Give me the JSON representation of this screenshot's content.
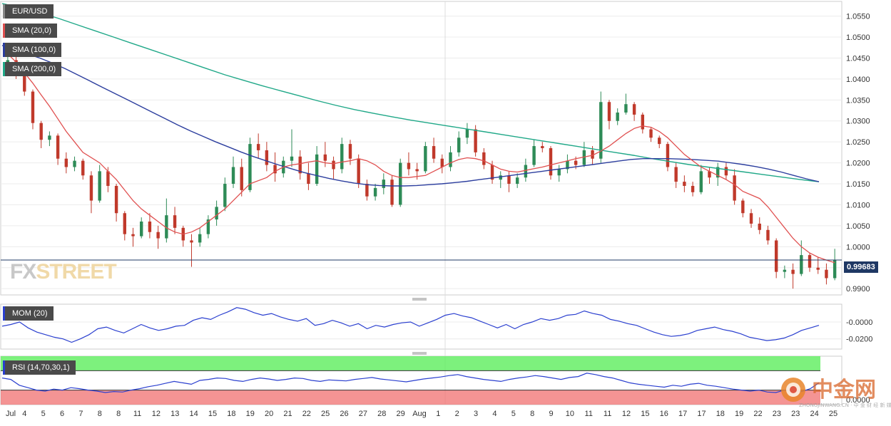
{
  "instrument": "EUR/USD",
  "colors": {
    "up": "#2e8b57",
    "down": "#c0392b",
    "sma20": "#e05050",
    "sma100": "#2c3e9e",
    "sma200": "#20a888",
    "mom": "#2a3fcf",
    "rsi": "#2a3fcf",
    "rsi_overbought": "#66ee66",
    "rsi_oversold": "#f07070",
    "price_line": "#1f3864"
  },
  "legends": {
    "pair": "EUR/USD",
    "sma20": "SMA (20,0)",
    "sma100": "SMA (100,0)",
    "sma200": "SMA (200,0)",
    "mom": "MOM (20)",
    "rsi": "RSI (14,70,30,1)"
  },
  "watermark": {
    "part1": "FX",
    "part2": "STREET"
  },
  "logo_text": "中金网",
  "logo_subtext": "ZHONGJINWANG.CN · 中 金 财 经 新 媒 体",
  "chart_data": [
    {
      "type": "candlestick",
      "name": "price",
      "ylim": [
        0.9885,
        1.0585
      ],
      "yticks": [
        "1.0550",
        "1.0500",
        "1.0450",
        "1.0400",
        "1.0350",
        "1.0300",
        "1.0250",
        "1.0200",
        "1.0150",
        "1.0100",
        "1.0050",
        "1.0000",
        "0.9950",
        "0.9900"
      ],
      "current_price": "0.99683",
      "x_labels": [
        "Jul",
        "4",
        "5",
        "6",
        "7",
        "8",
        "8",
        "11",
        "12",
        "13",
        "14",
        "15",
        "18",
        "19",
        "20",
        "21",
        "22",
        "25",
        "26",
        "27",
        "28",
        "29",
        "Aug",
        "1",
        "2",
        "3",
        "4",
        "5",
        "8",
        "9",
        "10",
        "11",
        "11",
        "12",
        "15",
        "16",
        "17",
        "17",
        "18",
        "19",
        "22",
        "23",
        "23",
        "24",
        "25"
      ],
      "candles": [
        [
          1.043,
          1.047,
          1.0425,
          1.0445
        ],
        [
          1.0445,
          1.0455,
          1.04,
          1.042
        ],
        [
          1.042,
          1.043,
          1.036,
          1.037
        ],
        [
          1.037,
          1.0375,
          1.028,
          1.0295
        ],
        [
          1.0295,
          1.03,
          1.0235,
          1.0255
        ],
        [
          1.0255,
          1.0275,
          1.024,
          1.0265
        ],
        [
          1.0265,
          1.027,
          1.0195,
          1.021
        ],
        [
          1.021,
          1.0225,
          1.0175,
          1.019
        ],
        [
          1.019,
          1.0215,
          1.018,
          1.0205
        ],
        [
          1.0205,
          1.021,
          1.016,
          1.017
        ],
        [
          1.017,
          1.018,
          1.008,
          1.011
        ],
        [
          1.011,
          1.0195,
          1.0105,
          1.018
        ],
        [
          1.018,
          1.019,
          1.013,
          1.0145
        ],
        [
          1.0145,
          1.015,
          1.006,
          1.008
        ],
        [
          1.008,
          1.0085,
          1.0015,
          1.003
        ],
        [
          1.003,
          1.0045,
          1.0,
          1.0025
        ],
        [
          1.0025,
          1.007,
          1.002,
          1.006
        ],
        [
          1.006,
          1.008,
          1.002,
          1.0035
        ],
        [
          1.0035,
          1.005,
          0.9995,
          1.002
        ],
        [
          1.002,
          1.0115,
          1.001,
          1.0075
        ],
        [
          1.0075,
          1.0095,
          1.003,
          1.0045
        ],
        [
          1.0045,
          1.005,
          1.0,
          1.0015
        ],
        [
          1.0015,
          1.003,
          0.9952,
          1.001
        ],
        [
          1.001,
          1.0045,
          1.0,
          1.003
        ],
        [
          1.003,
          1.0075,
          1.002,
          1.0065
        ],
        [
          1.0065,
          1.011,
          1.005,
          1.0095
        ],
        [
          1.0095,
          1.0165,
          1.0085,
          1.015
        ],
        [
          1.015,
          1.0215,
          1.014,
          1.019
        ],
        [
          1.019,
          1.021,
          1.012,
          1.0135
        ],
        [
          1.0135,
          1.026,
          1.013,
          1.0245
        ],
        [
          1.0245,
          1.027,
          1.021,
          1.023
        ],
        [
          1.023,
          1.025,
          1.018,
          1.0195
        ],
        [
          1.0195,
          1.0225,
          1.0155,
          1.0175
        ],
        [
          1.0175,
          1.0215,
          1.0165,
          1.0205
        ],
        [
          1.0205,
          1.028,
          1.019,
          1.0215
        ],
        [
          1.0215,
          1.023,
          1.016,
          1.0175
        ],
        [
          1.0175,
          1.02,
          1.0135,
          1.015
        ],
        [
          1.015,
          1.024,
          1.0145,
          1.022
        ],
        [
          1.022,
          1.025,
          1.019,
          1.0205
        ],
        [
          1.0205,
          1.0215,
          1.016,
          1.0185
        ],
        [
          1.0185,
          1.026,
          1.0175,
          1.0245
        ],
        [
          1.0245,
          1.0255,
          1.0195,
          1.021
        ],
        [
          1.021,
          1.022,
          1.014,
          1.015
        ],
        [
          1.015,
          1.016,
          1.011,
          1.012
        ],
        [
          1.012,
          1.015,
          1.011,
          1.014
        ],
        [
          1.014,
          1.0175,
          1.0125,
          1.016
        ],
        [
          1.016,
          1.017,
          1.0095,
          1.01
        ],
        [
          1.01,
          1.021,
          1.0095,
          1.02
        ],
        [
          1.02,
          1.0225,
          1.017,
          1.0185
        ],
        [
          1.0185,
          1.02,
          1.016,
          1.018
        ],
        [
          1.018,
          1.025,
          1.0175,
          1.024
        ],
        [
          1.024,
          1.026,
          1.02,
          1.021
        ],
        [
          1.021,
          1.022,
          1.0175,
          1.019
        ],
        [
          1.019,
          1.024,
          1.018,
          1.0225
        ],
        [
          1.0225,
          1.0275,
          1.0215,
          1.026
        ],
        [
          1.026,
          1.0295,
          1.0245,
          1.028
        ],
        [
          1.028,
          1.029,
          1.0215,
          1.0225
        ],
        [
          1.0225,
          1.0235,
          1.0185,
          1.0195
        ],
        [
          1.0195,
          1.0205,
          1.015,
          1.016
        ],
        [
          1.016,
          1.018,
          1.014,
          1.017
        ],
        [
          1.017,
          1.018,
          1.013,
          1.015
        ],
        [
          1.015,
          1.0175,
          1.014,
          1.0165
        ],
        [
          1.0165,
          1.021,
          1.0155,
          1.0195
        ],
        [
          1.0195,
          1.0255,
          1.019,
          1.024
        ],
        [
          1.024,
          1.025,
          1.0225,
          1.0235
        ],
        [
          1.0235,
          1.024,
          1.016,
          1.017
        ],
        [
          1.017,
          1.0195,
          1.0155,
          1.0185
        ],
        [
          1.0185,
          1.022,
          1.0175,
          1.0205
        ],
        [
          1.0205,
          1.0215,
          1.0185,
          1.0195
        ],
        [
          1.0195,
          1.025,
          1.019,
          1.023
        ],
        [
          1.023,
          1.024,
          1.0195,
          1.021
        ],
        [
          1.021,
          1.037,
          1.02,
          1.0345
        ],
        [
          1.0345,
          1.035,
          1.028,
          1.03
        ],
        [
          1.03,
          1.033,
          1.029,
          1.032
        ],
        [
          1.032,
          1.0365,
          1.0315,
          1.034
        ],
        [
          1.034,
          1.0345,
          1.03,
          1.0315
        ],
        [
          1.0315,
          1.032,
          1.027,
          1.028
        ],
        [
          1.028,
          1.0285,
          1.025,
          1.026
        ],
        [
          1.026,
          1.0265,
          1.0235,
          1.0245
        ],
        [
          1.0245,
          1.025,
          1.018,
          1.019
        ],
        [
          1.019,
          1.02,
          1.014,
          1.0155
        ],
        [
          1.0155,
          1.017,
          1.013,
          1.0145
        ],
        [
          1.0145,
          1.0155,
          1.012,
          1.013
        ],
        [
          1.013,
          1.0195,
          1.0125,
          1.018
        ],
        [
          1.018,
          1.019,
          1.015,
          1.0165
        ],
        [
          1.0165,
          1.02,
          1.0145,
          1.019
        ],
        [
          1.019,
          1.02,
          1.016,
          1.017
        ],
        [
          1.017,
          1.0185,
          1.01,
          1.011
        ],
        [
          1.011,
          1.0115,
          1.007,
          1.008
        ],
        [
          1.008,
          1.009,
          1.0045,
          1.0055
        ],
        [
          1.0055,
          1.007,
          1.003,
          1.004
        ],
        [
          1.004,
          1.005,
          1.0005,
          1.0015
        ],
        [
          1.0015,
          1.002,
          0.9925,
          0.994
        ],
        [
          0.994,
          0.9955,
          0.9925,
          0.9945
        ],
        [
          0.9945,
          0.996,
          0.99,
          0.9935
        ],
        [
          0.9935,
          1.0015,
          0.993,
          0.998
        ],
        [
          0.998,
          0.9985,
          0.994,
          0.995
        ],
        [
          0.995,
          0.9975,
          0.9935,
          0.9945
        ],
        [
          0.9945,
          0.996,
          0.991,
          0.9925
        ],
        [
          0.9925,
          0.9995,
          0.992,
          0.9968
        ]
      ],
      "sma20": [
        1.046,
        1.044,
        1.0415,
        1.039,
        1.0362,
        1.0335,
        1.0305,
        1.0275,
        1.025,
        1.0225,
        1.02,
        1.018,
        1.016,
        1.0135,
        1.011,
        1.009,
        1.0075,
        1.006,
        1.0045,
        1.0035,
        1.003,
        1.0035,
        1.0045,
        1.006,
        1.0075,
        1.009,
        1.011,
        1.013,
        1.015,
        1.0165,
        1.018,
        1.019,
        1.0195,
        1.0198,
        1.0202,
        1.0205,
        1.02,
        1.0198,
        1.0202,
        1.0205,
        1.021,
        1.0205,
        1.0195,
        1.018,
        1.017,
        1.0165,
        1.0165,
        1.017,
        1.018,
        1.019,
        1.02,
        1.0208,
        1.0212,
        1.021,
        1.0205,
        1.0195,
        1.0185,
        1.018,
        1.0178,
        1.0182,
        1.0186,
        1.019,
        1.0195,
        1.02,
        1.0205,
        1.021,
        1.0218,
        1.0228,
        1.024,
        1.0255,
        1.027,
        1.0282,
        1.0288,
        1.0285,
        1.0275,
        1.026,
        1.024,
        1.022,
        1.0205,
        1.019,
        1.018,
        1.017,
        1.016,
        1.0148,
        1.0132,
        1.0115,
        1.0095,
        1.007,
        1.0045,
        1.002,
        1.0,
        0.9985,
        0.9975,
        0.9968,
        0.9962
      ],
      "sma100": [
        1.048,
        1.047,
        1.046,
        1.045,
        1.0438,
        1.0425,
        1.041,
        1.0395,
        1.038,
        1.0365,
        1.035,
        1.0335,
        1.032,
        1.0305,
        1.029,
        1.0276,
        1.0263,
        1.025,
        1.0238,
        1.0226,
        1.0215,
        1.0205,
        1.0195,
        1.0186,
        1.0177,
        1.017,
        1.0163,
        1.0157,
        1.0152,
        1.0148,
        1.0146,
        1.0145,
        1.0145,
        1.0146,
        1.0148,
        1.015,
        1.0153,
        1.0156,
        1.016,
        1.0164,
        1.0168,
        1.0172,
        1.0176,
        1.018,
        1.0184,
        1.0188,
        1.0192,
        1.0196,
        1.02,
        1.0204,
        1.0208,
        1.021,
        1.021,
        1.021,
        1.0209,
        1.0208,
        1.0206,
        1.0204,
        1.02,
        1.0196,
        1.0191,
        1.0185,
        1.0178,
        1.017,
        1.0162,
        1.0155
      ],
      "sma200": [
        1.058,
        1.057,
        1.0558,
        1.0545,
        1.053,
        1.0515,
        1.05,
        1.0485,
        1.047,
        1.0455,
        1.044,
        1.0425,
        1.041,
        1.0397,
        1.0384,
        1.0372,
        1.036,
        1.0348,
        1.0337,
        1.0327,
        1.0318,
        1.031,
        1.0302,
        1.0295,
        1.0288,
        1.0281,
        1.0274,
        1.0267,
        1.026,
        1.0253,
        1.0246,
        1.0239,
        1.0232,
        1.0225,
        1.0218,
        1.021,
        1.0203,
        1.0196,
        1.019,
        1.0184,
        1.0178,
        1.0172,
        1.0166,
        1.016,
        1.0155
      ]
    },
    {
      "type": "line",
      "name": "MOM (20)",
      "ylim": [
        -0.032,
        0.021
      ],
      "yticks": [
        "-0.0000",
        "-0.0200"
      ],
      "values": [
        -0.005,
        -0.003,
        0.0,
        -0.007,
        -0.012,
        -0.015,
        -0.018,
        -0.02,
        -0.024,
        -0.02,
        -0.015,
        -0.008,
        -0.006,
        -0.01,
        -0.013,
        -0.008,
        -0.003,
        -0.007,
        -0.01,
        -0.008,
        -0.005,
        -0.004,
        0.002,
        0.005,
        0.003,
        0.008,
        0.012,
        0.017,
        0.015,
        0.011,
        0.008,
        0.01,
        0.006,
        0.003,
        0.001,
        0.004,
        -0.004,
        -0.002,
        0.002,
        -0.001,
        -0.005,
        -0.002,
        -0.008,
        -0.004,
        -0.006,
        -0.003,
        -0.001,
        0.0,
        -0.005,
        -0.001,
        0.003,
        0.008,
        0.01,
        0.007,
        0.005,
        0.001,
        -0.003,
        -0.007,
        -0.003,
        -0.008,
        -0.003,
        0.0,
        0.004,
        0.002,
        0.004,
        0.008,
        0.009,
        0.013,
        0.01,
        0.008,
        0.003,
        0.001,
        -0.002,
        -0.004,
        -0.008,
        -0.012,
        -0.015,
        -0.017,
        -0.016,
        -0.014,
        -0.01,
        -0.008,
        -0.006,
        -0.009,
        -0.011,
        -0.014,
        -0.018,
        -0.02,
        -0.022,
        -0.021,
        -0.019,
        -0.015,
        -0.01,
        -0.007,
        -0.004
      ]
    },
    {
      "type": "line",
      "name": "RSI (14,70,30,1)",
      "ylim": [
        0,
        100
      ],
      "yticks": [
        "0.0000"
      ],
      "overbought": 70,
      "oversold": 30,
      "values": [
        55,
        52,
        40,
        35,
        30,
        28,
        32,
        30,
        35,
        33,
        30,
        28,
        25,
        27,
        26,
        30,
        33,
        37,
        40,
        44,
        48,
        45,
        42,
        50,
        52,
        55,
        54,
        50,
        48,
        52,
        55,
        53,
        50,
        52,
        55,
        54,
        50,
        48,
        51,
        50,
        49,
        52,
        54,
        56,
        53,
        51,
        49,
        47,
        50,
        53,
        55,
        57,
        60,
        62,
        58,
        55,
        52,
        50,
        48,
        52,
        55,
        57,
        60,
        58,
        55,
        52,
        56,
        58,
        65,
        62,
        58,
        55,
        50,
        45,
        42,
        40,
        38,
        36,
        40,
        38,
        42,
        44,
        40,
        38,
        35,
        32,
        30,
        28,
        30,
        26,
        25,
        30,
        28,
        27,
        33,
        45
      ]
    }
  ]
}
